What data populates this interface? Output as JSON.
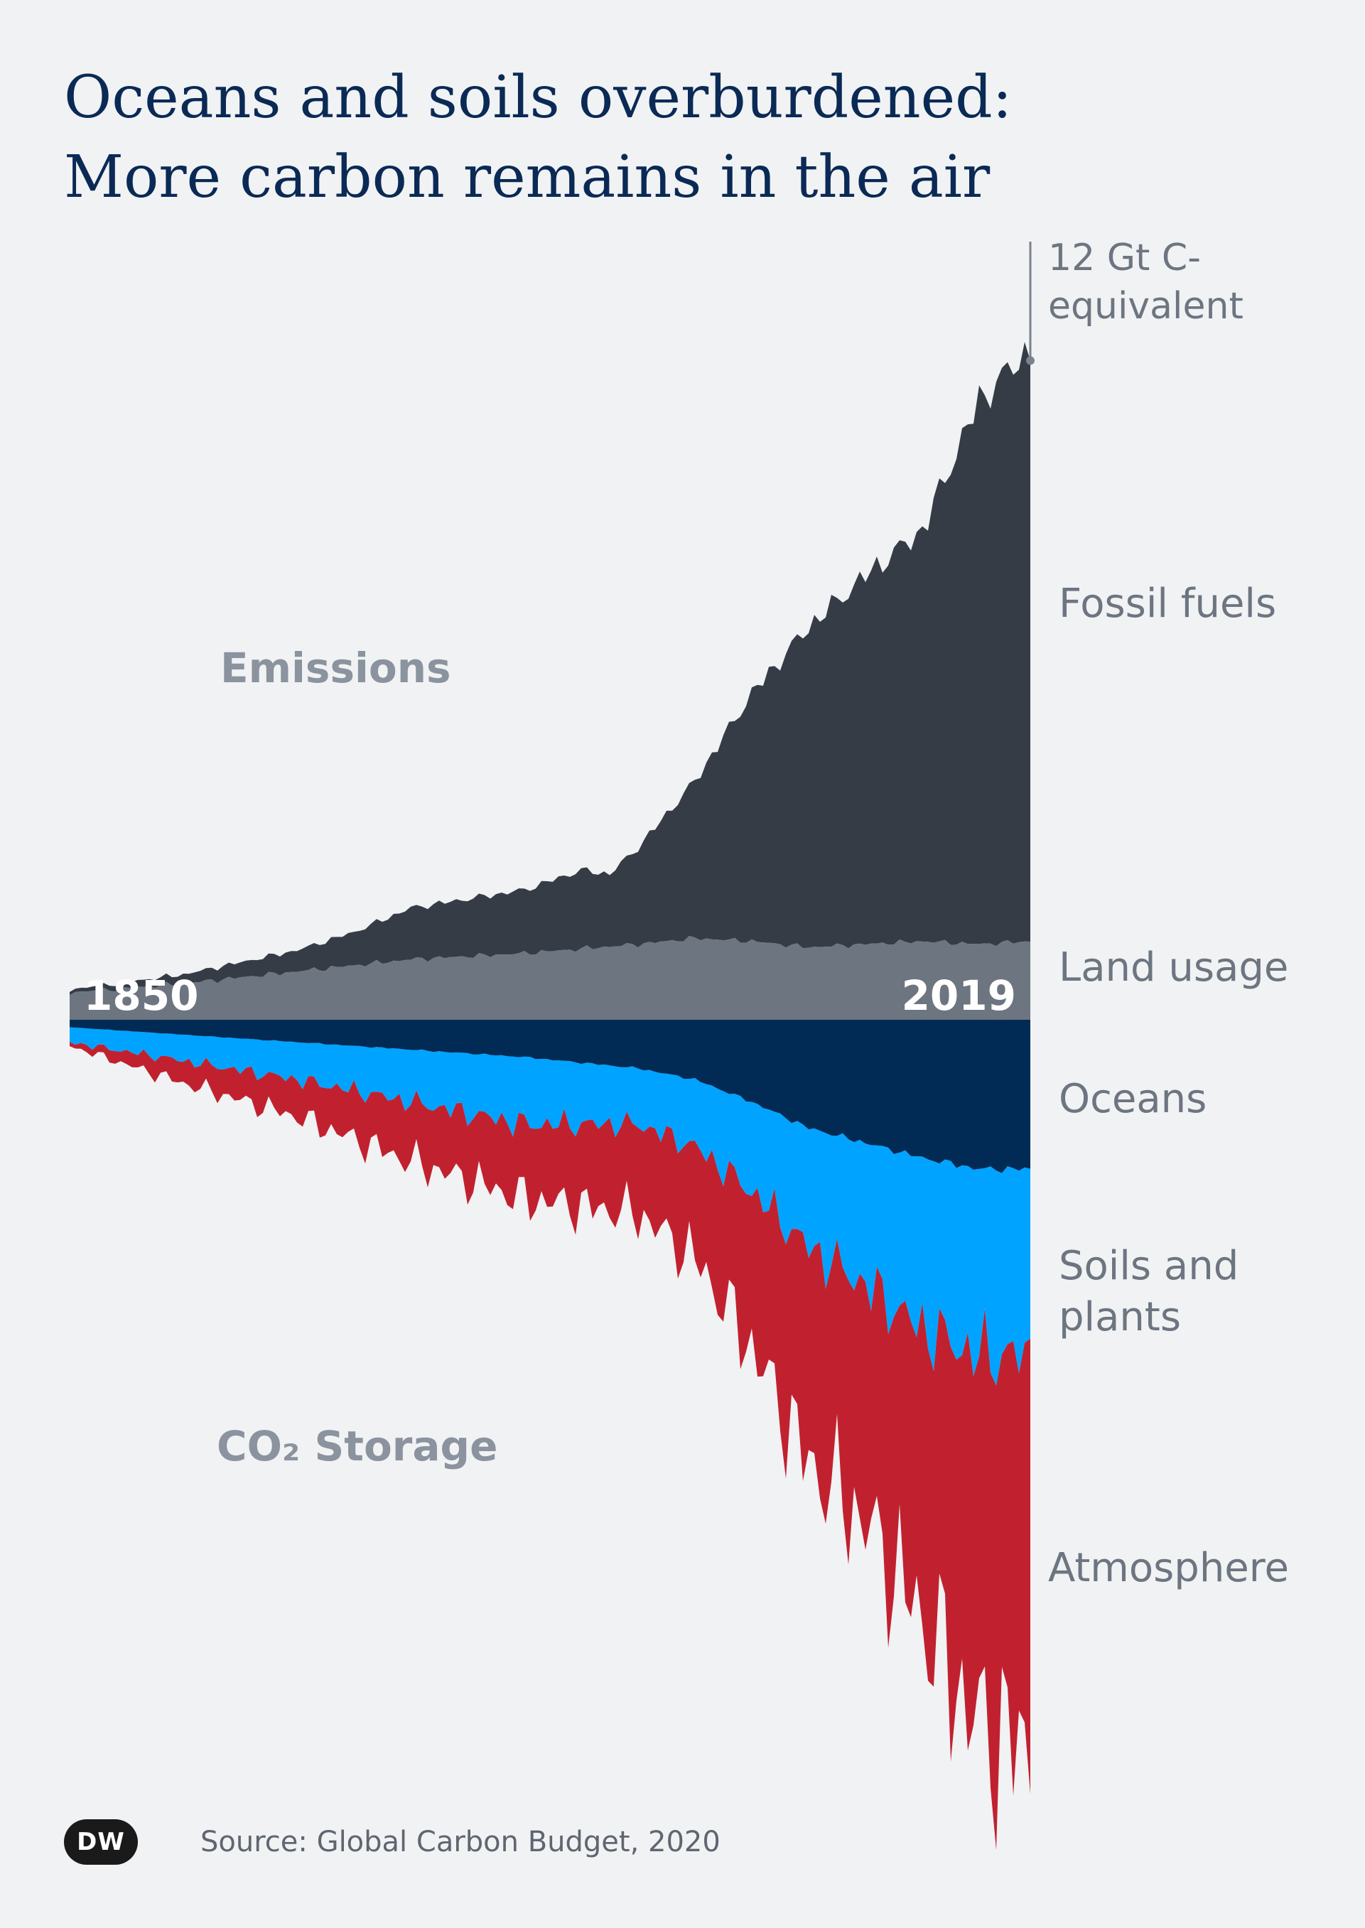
{
  "title": {
    "line1": "Oceans and soils overburdened:",
    "line2": "More carbon remains in the air"
  },
  "source": "Source: Global Carbon Budget, 2020",
  "logo_text": "DW",
  "colors": {
    "fossil": "#353c45",
    "land": "#6c7580",
    "ocean": "#012b55",
    "soil": "#00a3ff",
    "atmo": "#c1212f",
    "label": "#6c7580",
    "section": "#8a939e"
  },
  "chart_data": {
    "type": "area",
    "x_range": [
      1850,
      2019
    ],
    "x_start_label": "1850",
    "x_end_label": "2019",
    "scale_label": "12 Gt C-\nequivalent",
    "scale_value": 12,
    "section_labels": {
      "emissions": "Emissions",
      "storage": "CO₂ Storage"
    },
    "series": [
      {
        "name": "Fossil fuels",
        "group": "emissions",
        "color": "#353c45",
        "x": [
          1850,
          1860,
          1870,
          1880,
          1890,
          1900,
          1910,
          1920,
          1930,
          1940,
          1945,
          1950,
          1960,
          1970,
          1980,
          1990,
          2000,
          2010,
          2019
        ],
        "values": [
          0.05,
          0.1,
          0.15,
          0.25,
          0.35,
          0.55,
          0.85,
          0.95,
          1.05,
          1.3,
          1.2,
          1.6,
          2.6,
          4.1,
          5.3,
          6.1,
          6.8,
          9.0,
          9.8
        ]
      },
      {
        "name": "Land usage",
        "group": "emissions",
        "color": "#6c7580",
        "x": [
          1850,
          1870,
          1890,
          1910,
          1930,
          1950,
          1960,
          1970,
          1980,
          1990,
          2000,
          2010,
          2019
        ],
        "values": [
          0.45,
          0.6,
          0.8,
          1.0,
          1.1,
          1.25,
          1.35,
          1.3,
          1.2,
          1.25,
          1.3,
          1.25,
          1.3
        ]
      },
      {
        "name": "Oceans",
        "group": "storage",
        "color": "#012b55",
        "x": [
          1850,
          1870,
          1890,
          1910,
          1930,
          1950,
          1960,
          1970,
          1980,
          1990,
          2000,
          2010,
          2019
        ],
        "values": [
          0.1,
          0.2,
          0.3,
          0.4,
          0.5,
          0.65,
          0.8,
          1.1,
          1.45,
          1.65,
          1.85,
          2.0,
          2.0
        ]
      },
      {
        "name": "Soils and plants",
        "group": "storage",
        "color": "#00a3ff",
        "x": [
          1850,
          1870,
          1890,
          1910,
          1930,
          1950,
          1960,
          1970,
          1980,
          1990,
          2000,
          2010,
          2019
        ],
        "values": [
          0.2,
          0.35,
          0.5,
          0.7,
          0.9,
          0.75,
          0.9,
          1.2,
          1.6,
          1.9,
          2.3,
          2.5,
          2.5
        ]
      },
      {
        "name": "Atmosphere",
        "group": "storage",
        "color": "#c1212f",
        "x": [
          1850,
          1870,
          1890,
          1910,
          1930,
          1950,
          1960,
          1970,
          1980,
          1990,
          2000,
          2010,
          2019
        ],
        "values": [
          0.05,
          0.3,
          0.5,
          0.8,
          1.0,
          1.2,
          1.5,
          2.1,
          2.9,
          3.2,
          3.9,
          5.0,
          5.3
        ]
      }
    ]
  }
}
